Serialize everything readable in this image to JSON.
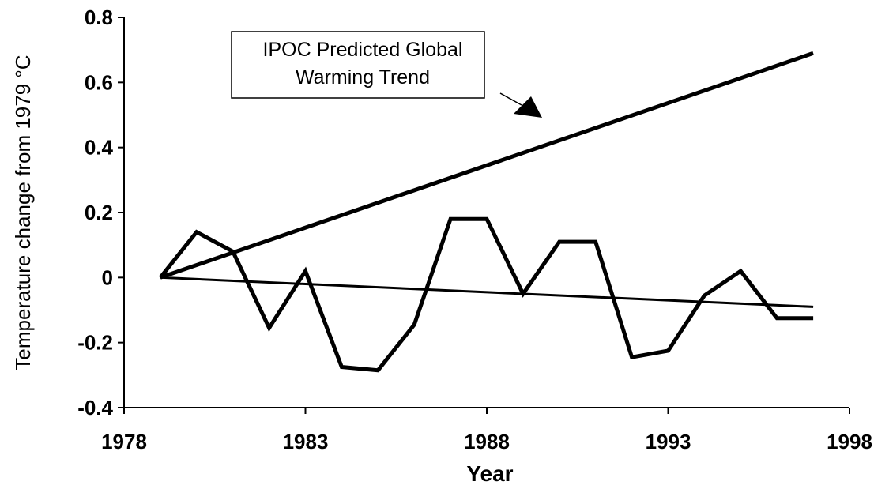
{
  "chart_data": {
    "type": "line",
    "title": "",
    "xlabel": "Year",
    "ylabel": "Temperature change from 1979 °C",
    "xlim": [
      1978,
      1998
    ],
    "ylim": [
      -0.4,
      0.8
    ],
    "xticks": [
      "1978",
      "1983",
      "1988",
      "1993",
      "1998"
    ],
    "yticks": [
      "0.8",
      "0.6",
      "0.4",
      "0.2",
      "0",
      "-0.2",
      "-0.4"
    ],
    "grid": false,
    "legend": "none",
    "annotation": {
      "line1": "IPOC Predicted Global",
      "line2": "Warming Trend"
    },
    "series": [
      {
        "values": [
          [
            1979,
            0.0
          ],
          [
            1980,
            0.14
          ],
          [
            1981,
            0.08
          ],
          [
            1982,
            -0.155
          ],
          [
            1983,
            0.02
          ],
          [
            1984,
            -0.275
          ],
          [
            1985,
            -0.285
          ],
          [
            1986,
            -0.145
          ],
          [
            1987,
            0.18
          ],
          [
            1988,
            0.18
          ],
          [
            1989,
            -0.05
          ],
          [
            1990,
            0.11
          ],
          [
            1991,
            0.11
          ],
          [
            1992,
            -0.245
          ],
          [
            1993,
            -0.225
          ],
          [
            1994,
            -0.055
          ],
          [
            1995,
            0.02
          ],
          [
            1996,
            -0.125
          ],
          [
            1997,
            -0.125
          ]
        ]
      },
      {
        "values": [
          [
            1979,
            0.0
          ],
          [
            1997,
            0.69
          ]
        ]
      },
      {
        "values": [
          [
            1979,
            0.0
          ],
          [
            1997,
            -0.09
          ]
        ]
      }
    ]
  }
}
